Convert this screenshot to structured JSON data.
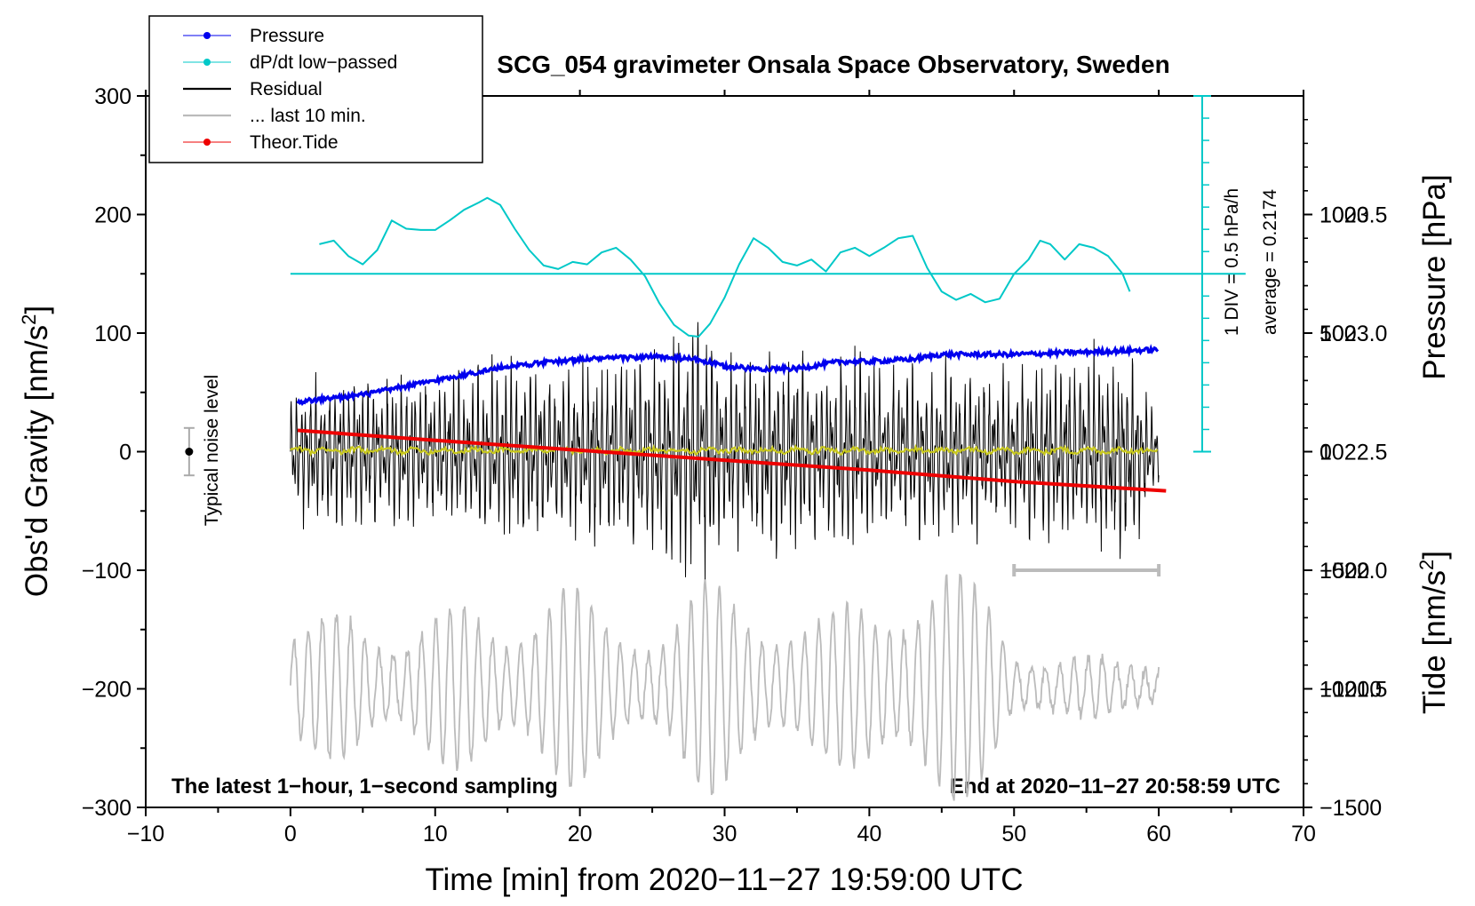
{
  "chart_data": {
    "type": "line",
    "title": "SCG_054 gravimeter Onsala Space Observatory, Sweden",
    "xlabel": "Time [min] from 2020−11−27 19:59:00 UTC",
    "ylabel_left": "Obs'd Gravity [nm/s",
    "ylabel_left_sup": "2",
    "ylabel_left_end": "]",
    "ylabel_right_pressure": "Pressure [hPa]",
    "ylabel_right_tide": "Tide [nm/s",
    "ylabel_right_tide_sup": "2",
    "ylabel_right_tide_end": "]",
    "xlim": [
      -10,
      70
    ],
    "ylim": [
      -300,
      300
    ],
    "pressure_lim": [
      1021.0,
      1024.0
    ],
    "tide_lim": [
      -1500,
      1500
    ],
    "x_ticks": [
      -10,
      0,
      10,
      20,
      30,
      40,
      50,
      60,
      70
    ],
    "x_tick_labels": [
      "−10",
      "0",
      "10",
      "20",
      "30",
      "40",
      "50",
      "60",
      "70"
    ],
    "y_ticks": [
      300,
      200,
      100,
      0,
      -100,
      -200,
      -300
    ],
    "y_tick_labels": [
      "300",
      "200",
      "100",
      "0",
      "−100",
      "−200",
      "−300"
    ],
    "pressure_ticks": [
      1023.5,
      1023.0,
      1022.5,
      1022.0,
      1021.5
    ],
    "pressure_tick_labels": [
      "1023.5",
      "1023.0",
      "1022.5",
      "1022.0",
      "1021.5"
    ],
    "tide_ticks": [
      1000,
      500,
      0,
      -500,
      -1000,
      -1500
    ],
    "tide_tick_labels": [
      "1000",
      "500",
      "0",
      "−500",
      "−1000",
      "−1500"
    ],
    "legend": {
      "items": [
        {
          "label": "Pressure",
          "color": "#0000ee",
          "marker": true
        },
        {
          "label": "dP/dt low−passed",
          "color": "#00c8c8",
          "marker": true
        },
        {
          "label": "Residual",
          "color": "#000000",
          "marker": false
        },
        {
          "label": "... last 10 min.",
          "color": "#bbbbbb",
          "marker": false
        },
        {
          "label": "Theor.Tide",
          "color": "#ee0000",
          "marker": true
        }
      ]
    },
    "annotations": {
      "bottom_left": "The latest 1−hour, 1−second sampling",
      "bottom_right": "End at 2020−11−27 20:58:59 UTC",
      "noise_label": "Typical noise level",
      "dpdt_scale": "1 DIV = 0.5 hPa/h",
      "dpdt_average": "average = 0.2174"
    },
    "series": [
      {
        "name": "Pressure",
        "axis": "pressure",
        "color": "#0000ee",
        "x": [
          0.5,
          5,
          10,
          15,
          20,
          25,
          28,
          30,
          32,
          35,
          38,
          40,
          43,
          45,
          50,
          55,
          60
        ],
        "values": [
          1022.71,
          1022.74,
          1022.8,
          1022.86,
          1022.89,
          1022.9,
          1022.89,
          1022.86,
          1022.85,
          1022.85,
          1022.88,
          1022.88,
          1022.89,
          1022.91,
          1022.91,
          1022.92,
          1022.93
        ]
      },
      {
        "name": "dP/dt low−passed",
        "axis": "gravity",
        "color": "#00c8c8",
        "x": [
          2,
          3,
          4,
          5,
          6,
          7,
          8,
          9,
          10,
          11,
          12,
          13,
          13.6,
          14.5,
          15.5,
          16.5,
          17.5,
          18.5,
          19.5,
          20.5,
          21.5,
          22.5,
          23.5,
          24.5,
          25.5,
          26.5,
          27.5,
          28.2,
          29,
          30,
          31,
          32,
          33,
          34,
          35,
          36,
          37,
          38,
          39,
          40,
          41,
          42,
          43,
          44,
          45,
          46,
          47,
          48,
          49,
          50,
          51,
          51.8,
          52.5,
          53.5,
          54.5,
          55.5,
          56.5,
          57.5,
          58
        ],
        "values": [
          175,
          178,
          165,
          158,
          170,
          195,
          188,
          187,
          187,
          195,
          204,
          210,
          214,
          208,
          188,
          170,
          157,
          154,
          160,
          158,
          168,
          172,
          162,
          148,
          125,
          107,
          98,
          97,
          108,
          130,
          158,
          180,
          172,
          160,
          157,
          162,
          152,
          168,
          172,
          165,
          172,
          180,
          182,
          155,
          135,
          128,
          133,
          126,
          129,
          150,
          162,
          178,
          175,
          162,
          175,
          172,
          165,
          150,
          135
        ]
      },
      {
        "name": "Residual",
        "axis": "gravity",
        "color": "#000000",
        "x_range": [
          0,
          60
        ],
        "envelope_x": [
          0,
          4,
          8,
          12,
          15,
          19,
          22,
          24.5,
          27.5,
          28.2,
          30,
          33,
          36,
          39,
          41,
          45,
          48,
          50,
          55,
          58,
          60
        ],
        "envelope_values": [
          68,
          75,
          72,
          78,
          95,
          80,
          92,
          98,
          118,
          132,
          90,
          95,
          88,
          100,
          85,
          88,
          82,
          80,
          95,
          100,
          30
        ]
      },
      {
        "name": "... last 10 min.",
        "axis": "gravity",
        "color": "#bbbbbb",
        "x_range": [
          0,
          60
        ],
        "center_value": -198,
        "amplitude_x": [
          0,
          4,
          8,
          12,
          15,
          19,
          22,
          26,
          29,
          33,
          36,
          40,
          43,
          46,
          48,
          50,
          54,
          58,
          60
        ],
        "amplitude_values": [
          45,
          70,
          50,
          72,
          58,
          90,
          60,
          52,
          95,
          65,
          55,
          80,
          90,
          100,
          85,
          35,
          25,
          25,
          25
        ]
      },
      {
        "name": "Theor.Tide",
        "axis": "tide",
        "color": "#ee0000",
        "x": [
          0.5,
          10,
          20,
          30,
          40,
          50,
          60.5
        ],
        "values": [
          90,
          48,
          6,
          -36,
          -78,
          -126,
          -165
        ]
      },
      {
        "name": "Residual smoothed",
        "axis": "gravity",
        "color": "#c8c81e",
        "x_range": [
          0,
          60
        ],
        "center_value": 1
      }
    ],
    "reference_lines": {
      "dpdt_baseline": 150,
      "last10_bar_x": [
        50,
        60
      ],
      "last10_bar_value": -100,
      "noise_bar_x": -7,
      "noise_bar_values": [
        -20,
        20
      ]
    }
  }
}
